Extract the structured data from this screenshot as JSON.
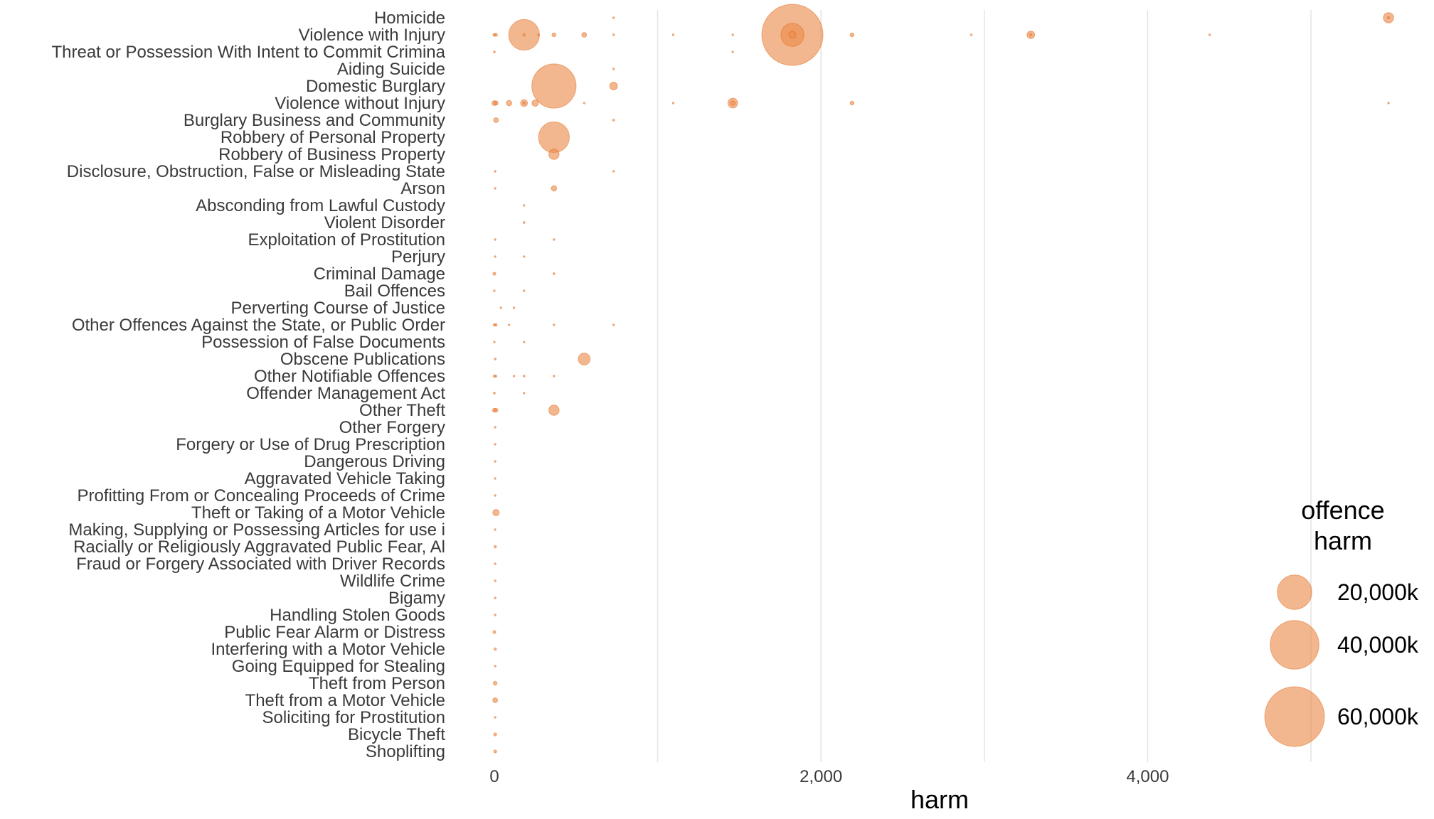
{
  "chart_data": {
    "type": "scatter",
    "xlabel": "harm",
    "ylabel": "",
    "xlim": [
      -150,
      5650
    ],
    "xticks": [
      0,
      2000,
      4000
    ],
    "xtick_labels": [
      "0",
      "2,000",
      "4,000"
    ],
    "gridlines_x": [
      1000,
      2000,
      3000,
      4000,
      5000
    ],
    "grid": true,
    "legend": {
      "title_lines": [
        "offence",
        "harm"
      ],
      "placement": "bottom-right",
      "entries": [
        {
          "label": "20,000k",
          "size": 20000
        },
        {
          "label": "40,000k",
          "size": 40000
        },
        {
          "label": "60,000k",
          "size": 60000
        }
      ]
    },
    "colors": {
      "point_fill": "#ec8b4b",
      "point_stroke": "#e06a1c"
    },
    "categories": [
      "Homicide",
      "Violence with Injury",
      "Threat or Possession With Intent to Commit Crimina",
      "Aiding Suicide",
      "Domestic Burglary",
      "Violence without Injury",
      "Burglary Business and Community",
      "Robbery of Personal Property",
      "Robbery of Business Property",
      "Disclosure, Obstruction, False or Misleading State",
      "Arson",
      "Absconding from Lawful Custody",
      "Violent Disorder",
      "Exploitation of Prostitution",
      "Perjury",
      "Criminal Damage",
      "Bail Offences",
      "Perverting Course of Justice",
      "Other Offences Against the State, or Public Order",
      "Possession of False Documents",
      "Obscene Publications",
      "Other Notifiable Offences",
      "Offender Management Act",
      "Other Theft",
      "Other Forgery",
      "Forgery or Use of Drug Prescription",
      "Dangerous Driving",
      "Aggravated Vehicle Taking",
      "Profitting From or Concealing Proceeds of Crime",
      "Theft or Taking of a Motor Vehicle",
      "Making, Supplying or Possessing Articles for use i",
      "Racially or Religiously Aggravated Public Fear, Al",
      "Fraud or Forgery Associated with Driver Records",
      "Wildlife Crime",
      "Bigamy",
      "Handling Stolen Goods",
      "Public Fear Alarm or Distress",
      "Interfering with a Motor Vehicle",
      "Going Equipped for Stealing",
      "Theft from Person",
      "Theft from a Motor Vehicle",
      "Soliciting for Prostitution",
      "Bicycle Theft",
      "Shoplifting"
    ],
    "points": [
      {
        "category": "Homicide",
        "x": 730,
        "size": 30
      },
      {
        "category": "Homicide",
        "x": 5475,
        "size": 1800
      },
      {
        "category": "Homicide",
        "x": 5475,
        "size": 100
      },
      {
        "category": "Violence with Injury",
        "x": 0,
        "size": 150
      },
      {
        "category": "Violence with Injury",
        "x": 10,
        "size": 150
      },
      {
        "category": "Violence with Injury",
        "x": 182,
        "size": 16000
      },
      {
        "category": "Violence with Injury",
        "x": 182,
        "size": 100
      },
      {
        "category": "Violence with Injury",
        "x": 270,
        "size": 30
      },
      {
        "category": "Violence with Injury",
        "x": 365,
        "size": 250
      },
      {
        "category": "Violence with Injury",
        "x": 550,
        "size": 400
      },
      {
        "category": "Violence with Injury",
        "x": 730,
        "size": 30
      },
      {
        "category": "Violence with Injury",
        "x": 1095,
        "size": 40
      },
      {
        "category": "Violence with Injury",
        "x": 1460,
        "size": 40
      },
      {
        "category": "Violence with Injury",
        "x": 1825,
        "size": 63000
      },
      {
        "category": "Violence with Injury",
        "x": 1825,
        "size": 9000
      },
      {
        "category": "Violence with Injury",
        "x": 1825,
        "size": 900
      },
      {
        "category": "Violence with Injury",
        "x": 2190,
        "size": 250
      },
      {
        "category": "Violence with Injury",
        "x": 2920,
        "size": 40
      },
      {
        "category": "Violence with Injury",
        "x": 3285,
        "size": 1000
      },
      {
        "category": "Violence with Injury",
        "x": 3285,
        "size": 100
      },
      {
        "category": "Violence with Injury",
        "x": 4380,
        "size": 40
      },
      {
        "category": "Threat or Possession With Intent to Commit Crimina",
        "x": 0,
        "size": 60
      },
      {
        "category": "Threat or Possession With Intent to Commit Crimina",
        "x": 1460,
        "size": 40
      },
      {
        "category": "Aiding Suicide",
        "x": 730,
        "size": 30
      },
      {
        "category": "Domestic Burglary",
        "x": 365,
        "size": 33000
      },
      {
        "category": "Domestic Burglary",
        "x": 730,
        "size": 1000
      },
      {
        "category": "Violence without Injury",
        "x": 0,
        "size": 400
      },
      {
        "category": "Violence without Injury",
        "x": 10,
        "size": 300
      },
      {
        "category": "Violence without Injury",
        "x": 90,
        "size": 500
      },
      {
        "category": "Violence without Injury",
        "x": 182,
        "size": 800
      },
      {
        "category": "Violence without Injury",
        "x": 182,
        "size": 100
      },
      {
        "category": "Violence without Injury",
        "x": 250,
        "size": 700
      },
      {
        "category": "Violence without Injury",
        "x": 550,
        "size": 40
      },
      {
        "category": "Violence without Injury",
        "x": 1095,
        "size": 40
      },
      {
        "category": "Violence without Injury",
        "x": 1460,
        "size": 1600
      },
      {
        "category": "Violence without Injury",
        "x": 1460,
        "size": 400
      },
      {
        "category": "Violence without Injury",
        "x": 2190,
        "size": 250
      },
      {
        "category": "Violence without Injury",
        "x": 5475,
        "size": 40
      },
      {
        "category": "Burglary Business and Community",
        "x": 10,
        "size": 400
      },
      {
        "category": "Burglary Business and Community",
        "x": 730,
        "size": 60
      },
      {
        "category": "Robbery of Personal Property",
        "x": 365,
        "size": 16000
      },
      {
        "category": "Robbery of Business Property",
        "x": 365,
        "size": 1800
      },
      {
        "category": "Disclosure, Obstruction, False or Misleading State",
        "x": 5,
        "size": 30
      },
      {
        "category": "Disclosure, Obstruction, False or Misleading State",
        "x": 730,
        "size": 30
      },
      {
        "category": "Arson",
        "x": 5,
        "size": 30
      },
      {
        "category": "Arson",
        "x": 365,
        "size": 500
      },
      {
        "category": "Absconding from Lawful Custody",
        "x": 182,
        "size": 40
      },
      {
        "category": "Violent Disorder",
        "x": 182,
        "size": 60
      },
      {
        "category": "Exploitation of Prostitution",
        "x": 5,
        "size": 20
      },
      {
        "category": "Exploitation of Prostitution",
        "x": 365,
        "size": 30
      },
      {
        "category": "Perjury",
        "x": 5,
        "size": 15
      },
      {
        "category": "Perjury",
        "x": 182,
        "size": 20
      },
      {
        "category": "Criminal Damage",
        "x": 0,
        "size": 150
      },
      {
        "category": "Criminal Damage",
        "x": 365,
        "size": 60
      },
      {
        "category": "Bail Offences",
        "x": 0,
        "size": 15
      },
      {
        "category": "Bail Offences",
        "x": 182,
        "size": 20
      },
      {
        "category": "Perverting Course of Justice",
        "x": 40,
        "size": 30
      },
      {
        "category": "Perverting Course of Justice",
        "x": 120,
        "size": 30
      },
      {
        "category": "Other Offences Against the State, or Public Order",
        "x": 0,
        "size": 100
      },
      {
        "category": "Other Offences Against the State, or Public Order",
        "x": 10,
        "size": 100
      },
      {
        "category": "Other Offences Against the State, or Public Order",
        "x": 90,
        "size": 30
      },
      {
        "category": "Other Offences Against the State, or Public Order",
        "x": 365,
        "size": 20
      },
      {
        "category": "Other Offences Against the State, or Public Order",
        "x": 730,
        "size": 30
      },
      {
        "category": "Possession of False Documents",
        "x": 0,
        "size": 30
      },
      {
        "category": "Possession of False Documents",
        "x": 182,
        "size": 15
      },
      {
        "category": "Obscene Publications",
        "x": 5,
        "size": 60
      },
      {
        "category": "Obscene Publications",
        "x": 550,
        "size": 2400
      },
      {
        "category": "Other Notifiable Offences",
        "x": 0,
        "size": 100
      },
      {
        "category": "Other Notifiable Offences",
        "x": 10,
        "size": 60
      },
      {
        "category": "Other Notifiable Offences",
        "x": 120,
        "size": 40
      },
      {
        "category": "Other Notifiable Offences",
        "x": 182,
        "size": 60
      },
      {
        "category": "Other Notifiable Offences",
        "x": 365,
        "size": 20
      },
      {
        "category": "Offender Management Act",
        "x": 0,
        "size": 60
      },
      {
        "category": "Offender Management Act",
        "x": 182,
        "size": 20
      },
      {
        "category": "Other Theft",
        "x": 0,
        "size": 250
      },
      {
        "category": "Other Theft",
        "x": 10,
        "size": 250
      },
      {
        "category": "Other Theft",
        "x": 365,
        "size": 1800
      },
      {
        "category": "Other Forgery",
        "x": 5,
        "size": 40
      },
      {
        "category": "Forgery or Use of Drug Prescription",
        "x": 5,
        "size": 10
      },
      {
        "category": "Dangerous Driving",
        "x": 5,
        "size": 40
      },
      {
        "category": "Aggravated Vehicle Taking",
        "x": 5,
        "size": 40
      },
      {
        "category": "Profitting From or Concealing Proceeds of Crime",
        "x": 5,
        "size": 40
      },
      {
        "category": "Theft or Taking of a Motor Vehicle",
        "x": 10,
        "size": 700
      },
      {
        "category": "Making, Supplying or Possessing Articles for use i",
        "x": 5,
        "size": 20
      },
      {
        "category": "Racially or Religiously Aggravated Public Fear, Al",
        "x": 5,
        "size": 100
      },
      {
        "category": "Fraud or Forgery Associated with Driver Records",
        "x": 5,
        "size": 20
      },
      {
        "category": "Wildlife Crime",
        "x": 5,
        "size": 10
      },
      {
        "category": "Bigamy",
        "x": 5,
        "size": 10
      },
      {
        "category": "Handling Stolen Goods",
        "x": 5,
        "size": 20
      },
      {
        "category": "Public Fear Alarm or Distress",
        "x": 0,
        "size": 150
      },
      {
        "category": "Interfering with a Motor Vehicle",
        "x": 5,
        "size": 100
      },
      {
        "category": "Going Equipped for Stealing",
        "x": 5,
        "size": 15
      },
      {
        "category": "Theft from Person",
        "x": 5,
        "size": 250
      },
      {
        "category": "Theft from a Motor Vehicle",
        "x": 5,
        "size": 400
      },
      {
        "category": "Soliciting for Prostitution",
        "x": 5,
        "size": 10
      },
      {
        "category": "Bicycle Theft",
        "x": 5,
        "size": 150
      },
      {
        "category": "Shoplifting",
        "x": 5,
        "size": 150
      }
    ]
  }
}
